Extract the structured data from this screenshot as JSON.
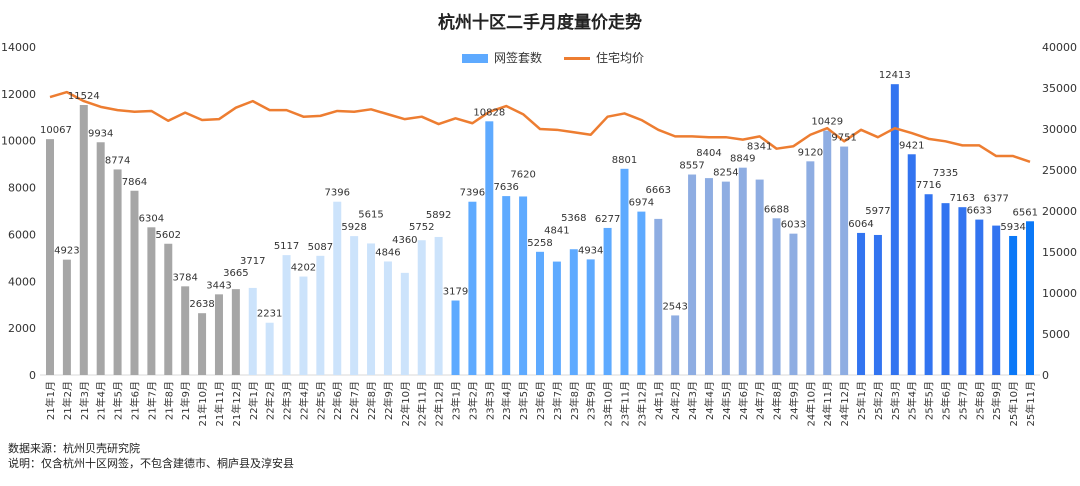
{
  "chart_data": {
    "type": "bar+line",
    "title": "杭州十区二手月度量价走势",
    "categories": [
      "21年1月",
      "21年2月",
      "21年3月",
      "21年4月",
      "21年5月",
      "21年6月",
      "21年7月",
      "21年8月",
      "21年9月",
      "21年10月",
      "21年11月",
      "21年12月",
      "22年1月",
      "22年2月",
      "22年3月",
      "22年4月",
      "22年5月",
      "22年6月",
      "22年7月",
      "22年8月",
      "22年9月",
      "22年10月",
      "22年11月",
      "22年12月",
      "23年1月",
      "23年2月",
      "23年3月",
      "23年4月",
      "23年5月",
      "23年6月",
      "23年7月",
      "23年8月",
      "23年9月",
      "23年10月",
      "23年11月",
      "23年12月",
      "24年1月",
      "24年2月",
      "24年3月",
      "24年4月",
      "24年5月",
      "24年6月",
      "24年7月",
      "24年8月",
      "24年9月",
      "24年10月",
      "24年11月",
      "24年12月",
      "25年1月",
      "25年2月",
      "25年3月",
      "25年4月",
      "25年5月",
      "25年6月",
      "25年7月",
      "25年8月",
      "25年9月",
      "25年10月",
      "25年11月"
    ],
    "series": [
      {
        "name": "网签套数",
        "type": "bar",
        "axis": "left",
        "values": [
          10067,
          4923,
          11524,
          9934,
          8774,
          7864,
          6304,
          5602,
          3784,
          2638,
          3443,
          3665,
          3717,
          2231,
          5117,
          4202,
          5087,
          7396,
          5928,
          5615,
          4846,
          4360,
          5752,
          5892,
          3179,
          7396,
          10828,
          7636,
          7620,
          5258,
          4841,
          5368,
          4934,
          6277,
          8801,
          6974,
          6663,
          2543,
          8557,
          8404,
          8254,
          8849,
          8341,
          6688,
          6033,
          9120,
          10429,
          9751,
          6064,
          5977,
          12413,
          9421,
          7716,
          7335,
          7163,
          6633,
          6377,
          5934,
          6561
        ]
      },
      {
        "name": "住宅均价",
        "type": "line",
        "axis": "right",
        "values": [
          33900,
          34500,
          33400,
          32700,
          32300,
          32100,
          32200,
          31000,
          32000,
          31100,
          31200,
          32600,
          33400,
          32300,
          32300,
          31500,
          31600,
          32200,
          32100,
          32400,
          31800,
          31200,
          31500,
          30600,
          31300,
          30700,
          32100,
          32800,
          31800,
          30000,
          29900,
          29600,
          29300,
          31500,
          31900,
          31100,
          29900,
          29100,
          29100,
          29000,
          29000,
          28700,
          29100,
          27600,
          27900,
          29300,
          30100,
          28500,
          29900,
          29000,
          30100,
          29500,
          28800,
          28500,
          28000,
          28000,
          26700,
          26700,
          26000
        ]
      }
    ],
    "y_left": {
      "range": [
        0,
        14000
      ],
      "ticks": [
        "0",
        "2000",
        "4000",
        "6000",
        "8000",
        "10000",
        "12000",
        "14000"
      ]
    },
    "y_right": {
      "range": [
        0,
        40000
      ],
      "ticks": [
        "0",
        "5000",
        "10000",
        "15000",
        "20000",
        "25000",
        "30000",
        "35000",
        "40000"
      ]
    },
    "grid": false,
    "legend": "top-center",
    "colors": {
      "2021": "#a6a6a6",
      "2022": "#cce3fb",
      "2023": "#5eaaff",
      "2024": "#8eade2",
      "2025": "#3274f0",
      "2025_late": "#0a78f7",
      "line": "#ed7d31"
    }
  },
  "footer": {
    "source": "数据来源：杭州贝壳研究院",
    "note": "说明：仅含杭州十区网签，不包含建德市、桐庐县及淳安县"
  }
}
